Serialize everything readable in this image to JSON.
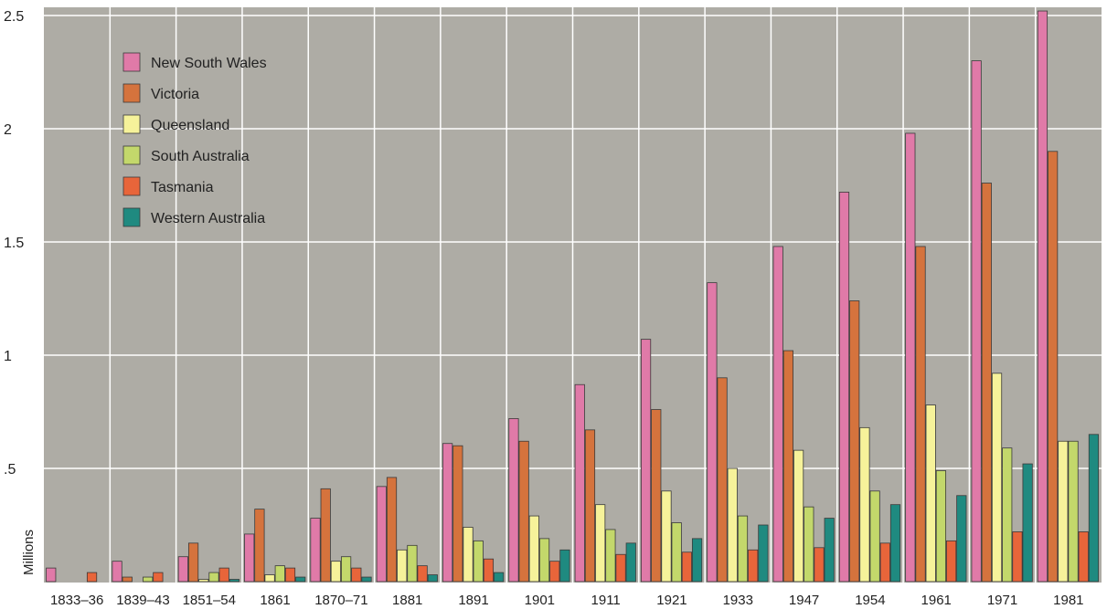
{
  "chart_data": {
    "type": "bar",
    "title": "",
    "xlabel": "",
    "ylabel": "Millions",
    "ylim": [
      0,
      2.5
    ],
    "yticks": [
      {
        "value": 0.5,
        "label": ".5"
      },
      {
        "value": 1,
        "label": "1"
      },
      {
        "value": 1.5,
        "label": "1.5"
      },
      {
        "value": 2,
        "label": "2"
      },
      {
        "value": 2.5,
        "label": "2.5"
      }
    ],
    "grid": true,
    "legend_position": "top-left",
    "categories": [
      "1833–36",
      "1839–43",
      "1851–54",
      "1861",
      "1870–71",
      "1881",
      "1891",
      "1901",
      "1911",
      "1921",
      "1933",
      "1947",
      "1954",
      "1961",
      "1971",
      "1981"
    ],
    "series": [
      {
        "name": "New South Wales",
        "color": "#e07aa8",
        "values": [
          0.06,
          0.09,
          0.11,
          0.21,
          0.28,
          0.42,
          0.61,
          0.72,
          0.87,
          1.07,
          1.32,
          1.48,
          1.72,
          1.98,
          2.3,
          2.52
        ]
      },
      {
        "name": "Victoria",
        "color": "#d5733d",
        "values": [
          0.0,
          0.02,
          0.17,
          0.32,
          0.41,
          0.46,
          0.6,
          0.62,
          0.67,
          0.76,
          0.9,
          1.02,
          1.24,
          1.48,
          1.76,
          1.9
        ]
      },
      {
        "name": "Queensland",
        "color": "#f6f29a",
        "values": [
          0.0,
          0.0,
          0.01,
          0.03,
          0.09,
          0.14,
          0.24,
          0.29,
          0.34,
          0.4,
          0.5,
          0.58,
          0.68,
          0.78,
          0.92,
          0.62
        ]
      },
      {
        "name": "South Australia",
        "color": "#c3d86b",
        "values": [
          0.0,
          0.02,
          0.04,
          0.07,
          0.11,
          0.16,
          0.18,
          0.19,
          0.23,
          0.26,
          0.29,
          0.33,
          0.4,
          0.49,
          0.59,
          0.62
        ]
      },
      {
        "name": "Tasmania",
        "color": "#e8653a",
        "values": [
          0.04,
          0.04,
          0.06,
          0.06,
          0.06,
          0.07,
          0.1,
          0.09,
          0.12,
          0.13,
          0.14,
          0.15,
          0.17,
          0.18,
          0.22,
          0.22
        ]
      },
      {
        "name": "Western Australia",
        "color": "#1f8a80",
        "values": [
          0.0,
          0.0,
          0.01,
          0.02,
          0.02,
          0.03,
          0.04,
          0.14,
          0.17,
          0.19,
          0.25,
          0.28,
          0.34,
          0.38,
          0.52,
          0.65
        ]
      }
    ]
  }
}
